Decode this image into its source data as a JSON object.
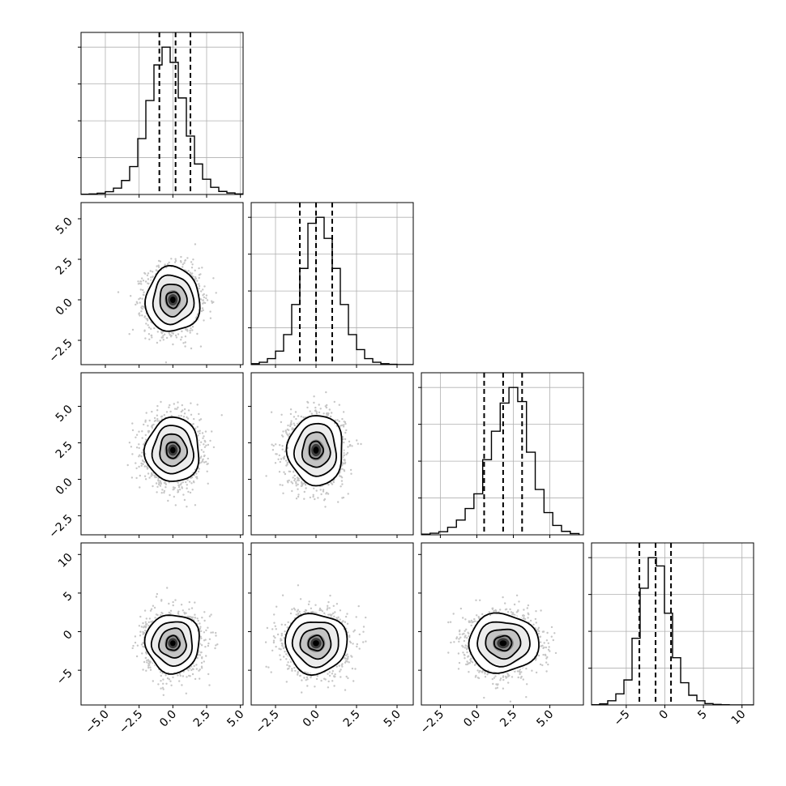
{
  "chart_data": {
    "type": "corner",
    "dimensions": 4,
    "ranges": [
      [
        -6.8,
        5.2
      ],
      [
        -4.0,
        6.0
      ],
      [
        -3.8,
        7.3
      ],
      [
        -9.5,
        11.5
      ]
    ],
    "ticks": [
      {
        "values": [
          -5.0,
          -2.5,
          0.0,
          2.5,
          5.0
        ],
        "labels": [
          "−5.0",
          "−2.5",
          "0.0",
          "2.5",
          "5.0"
        ]
      },
      {
        "values": [
          -2.5,
          0.0,
          2.5,
          5.0
        ],
        "labels": [
          "−2.5",
          "0.0",
          "2.5",
          "5.0"
        ]
      },
      {
        "values": [
          -2.5,
          0.0,
          2.5,
          5.0
        ],
        "labels": [
          "−2.5",
          "0.0",
          "2.5",
          "5.0"
        ]
      },
      {
        "values": [
          -5,
          0,
          5,
          10
        ],
        "labels": [
          "−5",
          "0",
          "5",
          "10"
        ]
      }
    ],
    "quantiles": [
      [
        -1.0,
        0.2,
        1.3
      ],
      [
        -1.0,
        0.0,
        1.0
      ],
      [
        0.5,
        1.8,
        3.1
      ],
      [
        -3.3,
        -1.2,
        0.8
      ]
    ],
    "histograms": [
      {
        "bin_edges": [
          -6.8,
          -6.2,
          -5.6,
          -5.0,
          -4.4,
          -3.8,
          -3.2,
          -2.6,
          -2.0,
          -1.4,
          -0.8,
          -0.2,
          0.4,
          1.0,
          1.6,
          2.2,
          2.8,
          3.4,
          4.0,
          4.6,
          5.2
        ],
        "counts": [
          1,
          2,
          5,
          11,
          25,
          55,
          110,
          220,
          370,
          510,
          580,
          520,
          380,
          230,
          120,
          60,
          28,
          12,
          6,
          2
        ]
      },
      {
        "bin_edges": [
          -4.0,
          -3.5,
          -3.0,
          -2.5,
          -2.0,
          -1.5,
          -1.0,
          -0.5,
          0.0,
          0.5,
          1.0,
          1.5,
          2.0,
          2.5,
          3.0,
          3.5,
          4.0,
          4.5,
          5.0,
          5.5,
          6.0
        ],
        "counts": [
          3,
          8,
          20,
          45,
          100,
          200,
          320,
          470,
          490,
          420,
          320,
          200,
          100,
          50,
          20,
          8,
          3,
          1,
          0,
          0
        ]
      },
      {
        "bin_edges": [
          -3.8,
          -3.2,
          -2.6,
          -2.0,
          -1.4,
          -0.8,
          -0.2,
          0.4,
          1.0,
          1.6,
          2.2,
          2.8,
          3.4,
          4.0,
          4.6,
          5.2,
          5.8,
          6.4,
          7.0
        ],
        "counts": [
          2,
          5,
          10,
          24,
          47,
          84,
          131,
          240,
          331,
          421,
          471,
          426,
          264,
          145,
          71,
          30,
          11,
          4
        ]
      },
      {
        "bin_edges": [
          -9.5,
          -8.45,
          -7.4,
          -6.35,
          -5.3,
          -4.25,
          -3.2,
          -2.15,
          -1.1,
          -0.05,
          1.0,
          2.05,
          3.1,
          4.15,
          5.2,
          6.25,
          7.3,
          8.35,
          9.4,
          10.45,
          11.5
        ],
        "counts": [
          1,
          4,
          15,
          40,
          90,
          240,
          420,
          530,
          500,
          330,
          170,
          80,
          35,
          15,
          5,
          2,
          1,
          0,
          0,
          0
        ]
      }
    ],
    "pairs": [
      {
        "row": 1,
        "col": 0,
        "center": [
          0.0,
          0.0
        ],
        "sigma": [
          1.0,
          1.0
        ]
      },
      {
        "row": 2,
        "col": 0,
        "center": [
          0.0,
          2.0
        ],
        "sigma": [
          1.0,
          1.1
        ]
      },
      {
        "row": 2,
        "col": 1,
        "center": [
          0.0,
          2.0
        ],
        "sigma": [
          0.85,
          1.2
        ]
      },
      {
        "row": 3,
        "col": 0,
        "center": [
          0.0,
          -1.5
        ],
        "sigma": [
          1.0,
          1.9
        ]
      },
      {
        "row": 3,
        "col": 1,
        "center": [
          0.0,
          -1.5
        ],
        "sigma": [
          0.95,
          1.95
        ]
      },
      {
        "row": 3,
        "col": 2,
        "center": [
          1.8,
          -1.5
        ],
        "sigma": [
          1.2,
          1.9
        ]
      }
    ],
    "grid": true,
    "contour_levels_sigma": [
      0.5,
      1.0,
      1.5,
      2.0
    ],
    "colors": {
      "line": "#000000",
      "grid": "#b0b0b0",
      "scatter": "#b8b8b8",
      "frame": "#000000"
    }
  }
}
